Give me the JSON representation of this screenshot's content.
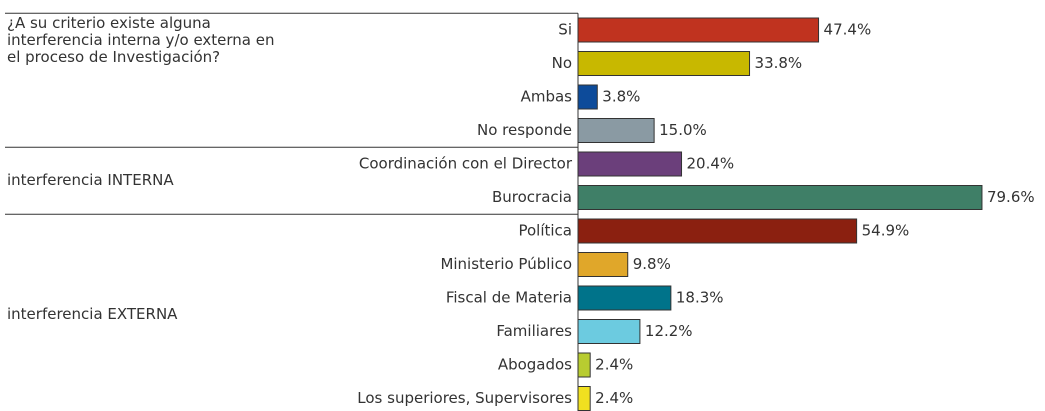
{
  "chart_data": {
    "type": "bar",
    "orientation": "horizontal",
    "groups": [
      {
        "label": "¿A su criterio existe alguna interferencia interna y/o externa en el proceso de Investigación?",
        "categories": [
          "Si",
          "No",
          "Ambas",
          "No responde"
        ],
        "values": [
          47.4,
          33.8,
          3.8,
          15.0
        ],
        "value_labels": [
          "47.4%",
          "33.8%",
          "3.8%",
          "15.0%"
        ],
        "colors": [
          "#c0331f",
          "#c8b800",
          "#0d4b9a",
          "#8a9aa3"
        ]
      },
      {
        "label": "interferencia INTERNA",
        "categories": [
          "Coordinación con el Director",
          "Burocracia"
        ],
        "values": [
          20.4,
          79.6
        ],
        "value_labels": [
          "20.4%",
          "79.6%"
        ],
        "colors": [
          "#6b3f7b",
          "#3f7f67"
        ]
      },
      {
        "label": "interferencia EXTERNA",
        "categories": [
          "Política",
          "Ministerio Público",
          "Fiscal de Materia",
          "Familiares",
          "Abogados",
          "Los superiores, Supervisores"
        ],
        "values": [
          54.9,
          9.8,
          18.3,
          12.2,
          2.4,
          2.4
        ],
        "value_labels": [
          "54.9%",
          "9.8%",
          "18.3%",
          "12.2%",
          "2.4%",
          "2.4%"
        ],
        "colors": [
          "#8b2010",
          "#e0a72a",
          "#00738a",
          "#6ccbe0",
          "#b8cc30",
          "#f0e020"
        ]
      }
    ]
  }
}
